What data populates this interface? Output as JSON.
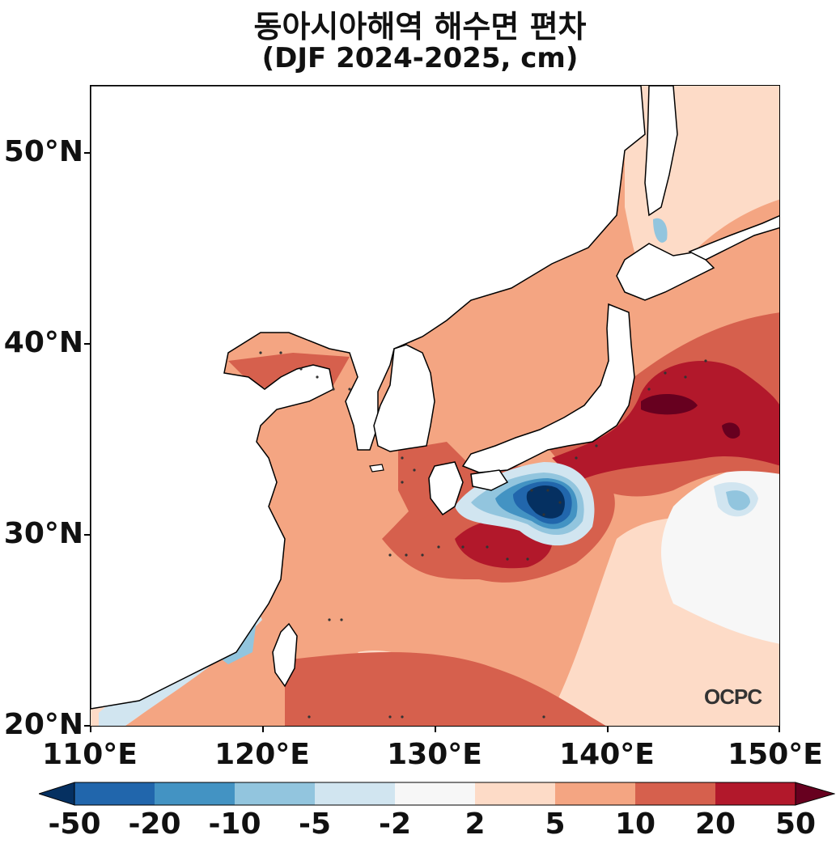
{
  "title": "동아시아해역 해수면 편차",
  "subtitle": "(DJF 2024-2025, cm)",
  "logo": "OCPC",
  "lat_labels": [
    "50°N",
    "40°N",
    "30°N",
    "20°N"
  ],
  "lon_labels": [
    "110°E",
    "120°E",
    "130°E",
    "140°E",
    "150°E"
  ],
  "extent": {
    "lon": [
      110,
      150
    ],
    "lat": [
      20,
      53.5
    ]
  },
  "colorbar": {
    "labels": [
      "-50",
      "-20",
      "-10",
      "-5",
      "-2",
      "2",
      "5",
      "10",
      "20",
      "50"
    ],
    "colors": [
      "#2166ac",
      "#4393c3",
      "#92c5de",
      "#d1e5f0",
      "#f7f7f7",
      "#fddbc7",
      "#f4a582",
      "#d6604d",
      "#b2182b"
    ],
    "under_color": "#053061",
    "over_color": "#67001f"
  },
  "colors": {
    "sea_base": "#f4a582",
    "light_pos": "#fddbc7",
    "mid_pos": "#d6604d",
    "strong_pos": "#b2182b",
    "extreme_pos": "#67001f",
    "neutral": "#f7f7f7",
    "light_neg": "#d1e5f0",
    "mid_neg": "#92c5de",
    "neg": "#4393c3",
    "strong_neg": "#2166ac",
    "extreme_neg": "#053061",
    "land": "#ffffff",
    "coast": "#000000"
  }
}
